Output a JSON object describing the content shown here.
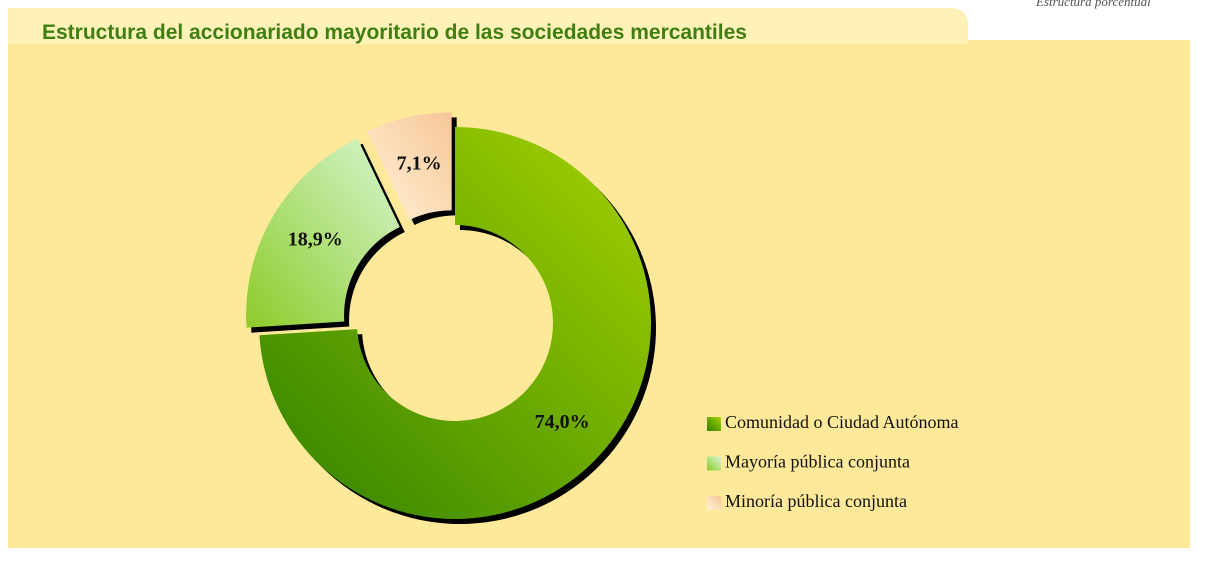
{
  "chart_data": {
    "type": "pie",
    "title": "Estructura del accionariado mayoritario de las sociedades mercantiles",
    "subtitle": "Estructura porcentual",
    "categories": [
      "Comunidad o Ciudad Autónoma",
      "Mayoría pública conjunta",
      "Minoría pública conjunta"
    ],
    "values": [
      74.0,
      18.9,
      7.1
    ],
    "value_labels": [
      "74,0%",
      "18,9%",
      "7,1%"
    ],
    "colors": [
      "#4f9a00",
      "#b5e68a",
      "#fbd9b0"
    ],
    "hole": true,
    "legend": "right"
  }
}
